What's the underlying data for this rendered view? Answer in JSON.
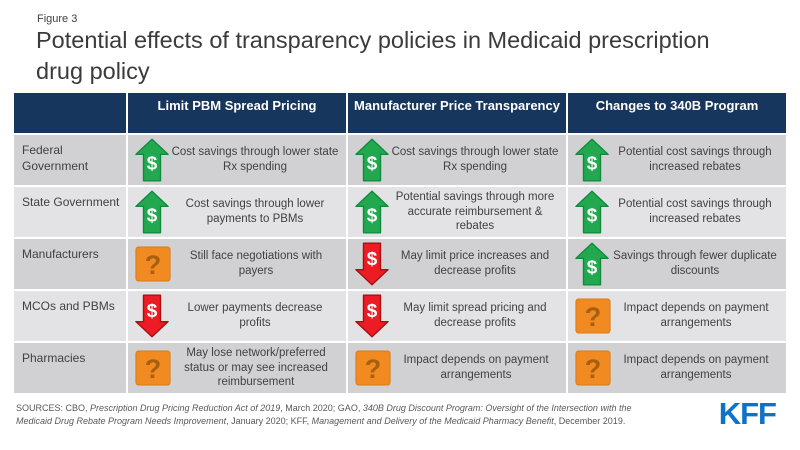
{
  "chart_data": {
    "type": "table",
    "figure_label": "Figure 3",
    "title": "Potential effects of transparency policies in Medicaid prescription drug policy",
    "columns": [
      "",
      "Limit PBM Spread Pricing",
      "Manufacturer Price Transparency",
      "Changes to 340B Program"
    ],
    "rows": [
      {
        "label": "Federal Government",
        "cells": [
          {
            "icon": "green-up-arrow-dollar",
            "text": "Cost savings through lower state Rx spending"
          },
          {
            "icon": "green-up-arrow-dollar",
            "text": "Cost savings through lower state Rx spending"
          },
          {
            "icon": "green-up-arrow-dollar",
            "text": "Potential cost savings through increased rebates"
          }
        ]
      },
      {
        "label": "State Government",
        "cells": [
          {
            "icon": "green-up-arrow-dollar",
            "text": "Cost savings through lower payments to PBMs"
          },
          {
            "icon": "green-up-arrow-dollar",
            "text": "Potential savings through more accurate reimbursement & rebates"
          },
          {
            "icon": "green-up-arrow-dollar",
            "text": "Potential cost savings through increased rebates"
          }
        ]
      },
      {
        "label": "Manufacturers",
        "cells": [
          {
            "icon": "orange-question-mark",
            "text": "Still face negotiations with payers"
          },
          {
            "icon": "red-down-arrow-dollar",
            "text": "May limit price increases and decrease profits"
          },
          {
            "icon": "green-up-arrow-dollar",
            "text": "Savings through fewer duplicate discounts"
          }
        ]
      },
      {
        "label": "MCOs and PBMs",
        "cells": [
          {
            "icon": "red-down-arrow-dollar",
            "text": "Lower payments decrease profits"
          },
          {
            "icon": "red-down-arrow-dollar",
            "text": "May limit spread pricing and decrease profits"
          },
          {
            "icon": "orange-question-mark",
            "text": "Impact depends on payment arrangements"
          }
        ]
      },
      {
        "label": "Pharmacies",
        "cells": [
          {
            "icon": "orange-question-mark",
            "text": "May lose network/preferred status or may see increased reimbursement"
          },
          {
            "icon": "orange-question-mark",
            "text": "Impact depends on payment arrangements"
          },
          {
            "icon": "orange-question-mark",
            "text": "Impact depends on payment arrangements"
          }
        ]
      }
    ]
  },
  "footer": {
    "sources_segments": [
      {
        "text": "SOURCES: CBO, ",
        "italic": false
      },
      {
        "text": "Prescription Drug Pricing Reduction Act of 2019",
        "italic": true
      },
      {
        "text": ", March 2020; GAO, ",
        "italic": false
      },
      {
        "text": "340B Drug Discount Program: Oversight of the Intersection with the Medicaid Drug Rebate Program Needs Improvement",
        "italic": true
      },
      {
        "text": ", January 2020; KFF, ",
        "italic": false
      },
      {
        "text": "Management and Delivery of the Medicaid Pharmacy Benefit",
        "italic": true
      },
      {
        "text": ", December 2019.",
        "italic": false
      }
    ],
    "logo_text": "KFF"
  },
  "colors": {
    "header_bg": "#17365d",
    "row_dark": "#d1d1d3",
    "row_light": "#e3e3e5",
    "green": "#22a94f",
    "green_border": "#128a3e",
    "red": "#ed1c24",
    "red_border": "#a31111",
    "orange": "#f08a21",
    "orange_border": "#d87a12",
    "orange_mark": "#a8600f",
    "kff_blue": "#0d72c9"
  }
}
